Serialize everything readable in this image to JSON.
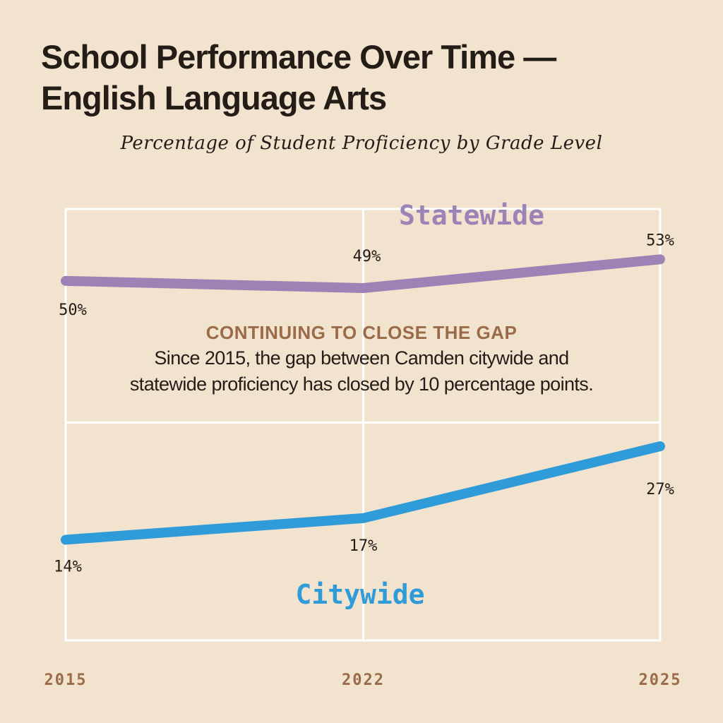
{
  "header": {
    "title_line1": "School Performance Over Time —",
    "title_line2": "English Language Arts",
    "subtitle": "Percentage of Student Proficiency by Grade Level"
  },
  "annotation": {
    "heading": "CONTINUING TO CLOSE THE GAP",
    "line1": "Since 2015, the gap between Camden citywide and",
    "line2": "statewide proficiency has closed by 10 percentage points."
  },
  "colors": {
    "background": "#f2e3cf",
    "statewide": "#9d83b5",
    "citywide": "#2f9bd8",
    "accent": "#9a6b48",
    "text": "#231c17",
    "grid": "#ffffff"
  },
  "chart_data": {
    "type": "line",
    "title": "School Performance Over Time — English Language Arts",
    "subtitle": "Percentage of Student Proficiency by Grade Level",
    "xlabel": "",
    "ylabel": "",
    "x": [
      "2015",
      "2022",
      "2025"
    ],
    "ylim": [
      0,
      60
    ],
    "grid": true,
    "series": [
      {
        "name": "Statewide",
        "values": [
          50,
          49,
          53
        ],
        "labels": [
          "50%",
          "49%",
          "53%"
        ]
      },
      {
        "name": "Citywide",
        "values": [
          14,
          17,
          27
        ],
        "labels": [
          "14%",
          "17%",
          "27%"
        ]
      }
    ]
  }
}
